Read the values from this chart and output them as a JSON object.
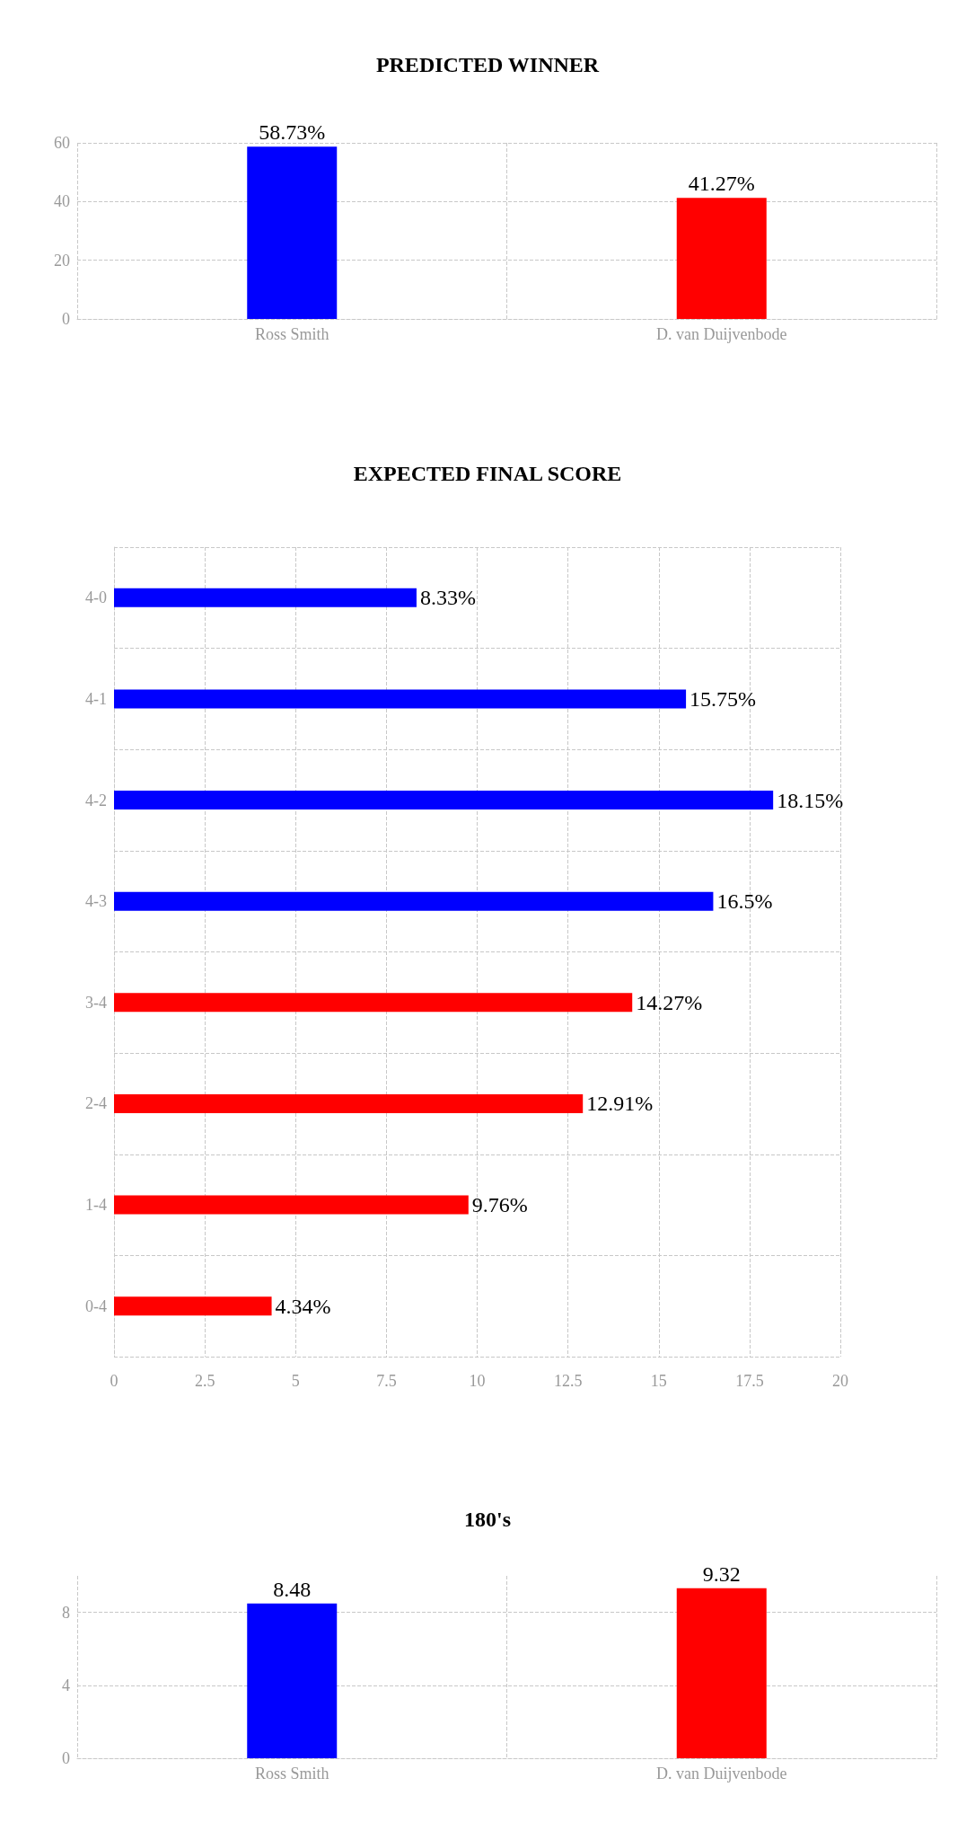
{
  "chart_data": [
    {
      "type": "bar",
      "title": "PREDICTED WINNER",
      "categories": [
        "Ross Smith",
        "D. van Duijvenbode"
      ],
      "values": [
        58.73,
        41.27
      ],
      "colors": [
        "#0000ff",
        "#ff0000"
      ],
      "value_labels": [
        "58.73%",
        "41.27%"
      ],
      "ylim": [
        0,
        60
      ],
      "yticks": [
        0,
        20,
        40,
        60
      ],
      "grid": true
    },
    {
      "type": "bar",
      "title": "EXPECTED FINAL SCORE",
      "orientation": "horizontal",
      "categories": [
        "4-0",
        "4-1",
        "4-2",
        "4-3",
        "3-4",
        "2-4",
        "1-4",
        "0-4"
      ],
      "values": [
        8.33,
        15.75,
        18.15,
        16.5,
        14.27,
        12.91,
        9.76,
        4.34
      ],
      "colors": [
        "#0000ff",
        "#0000ff",
        "#0000ff",
        "#0000ff",
        "#ff0000",
        "#ff0000",
        "#ff0000",
        "#ff0000"
      ],
      "value_labels": [
        "8.33%",
        "15.75%",
        "18.15%",
        "16.5%",
        "14.27%",
        "12.91%",
        "9.76%",
        "4.34%"
      ],
      "xlim": [
        0,
        20
      ],
      "xticks": [
        0,
        2.5,
        5,
        7.5,
        10,
        12.5,
        15,
        17.5,
        20
      ],
      "grid": true
    },
    {
      "type": "bar",
      "title": "180's",
      "categories": [
        "Ross Smith",
        "D. van Duijvenbode"
      ],
      "values": [
        8.48,
        9.32
      ],
      "colors": [
        "#0000ff",
        "#ff0000"
      ],
      "data_labels": true,
      "ylim": [
        0,
        10
      ],
      "yticks": [
        0,
        4,
        8
      ],
      "grid": true
    }
  ]
}
